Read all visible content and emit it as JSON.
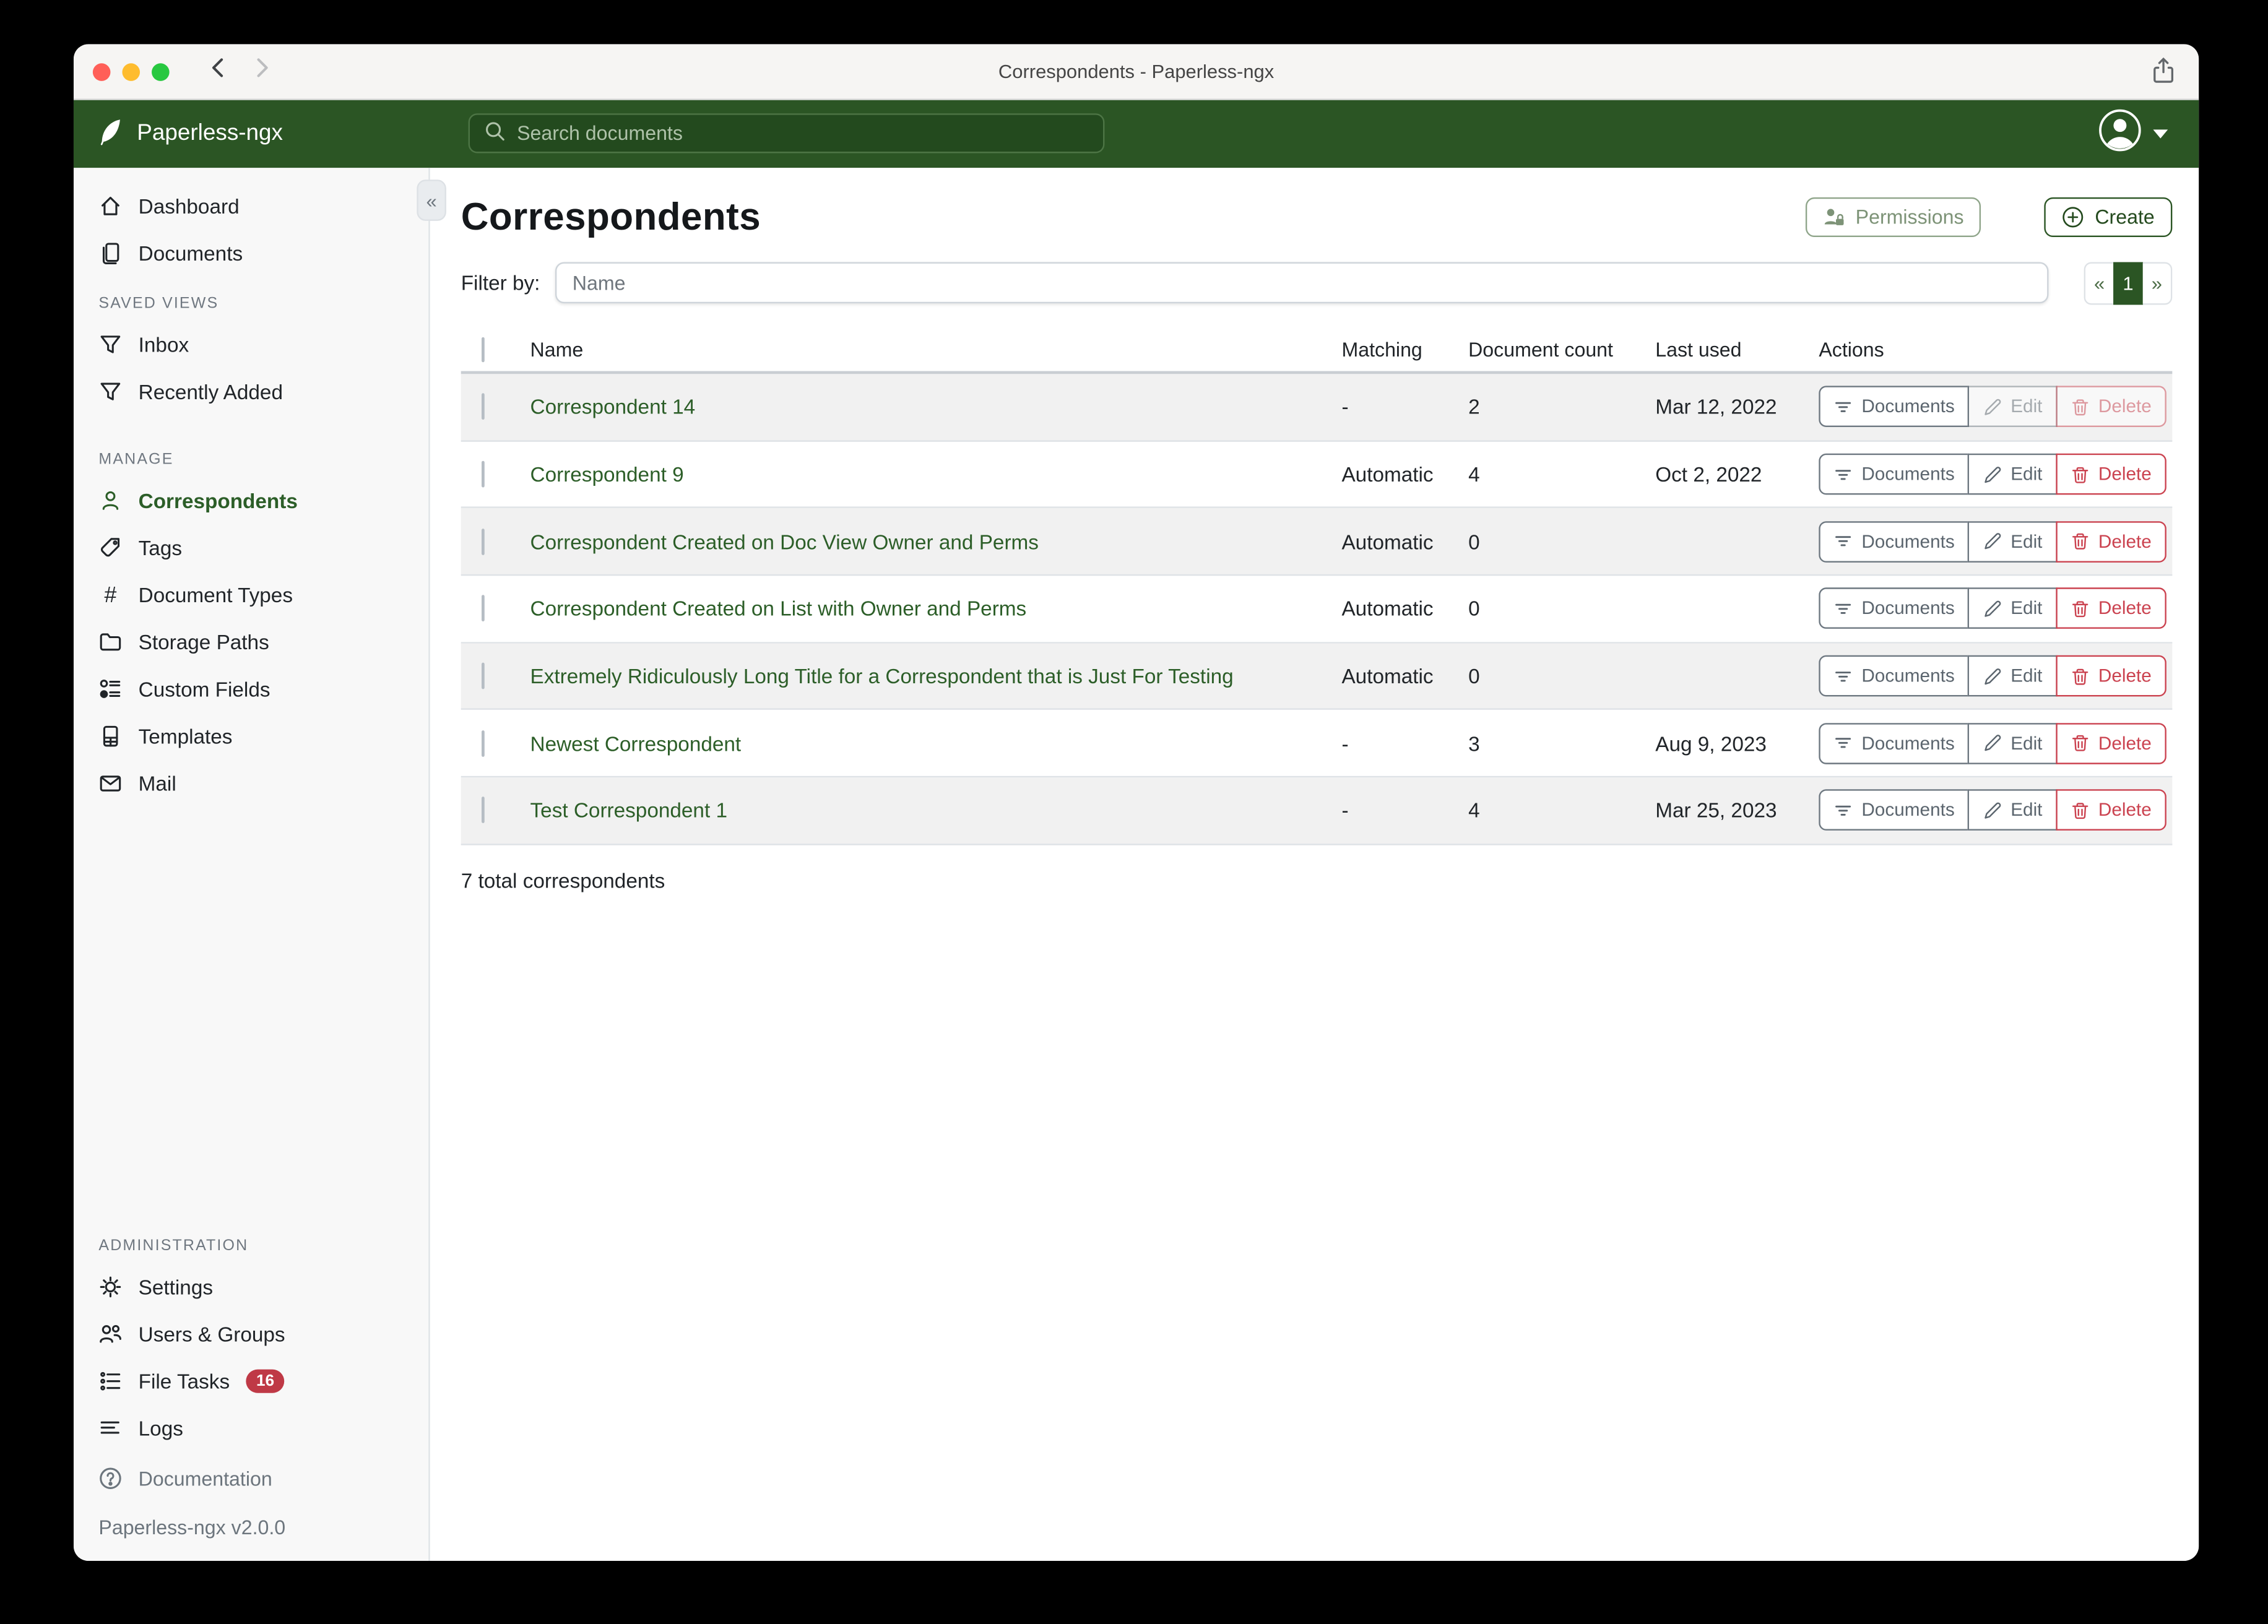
{
  "window": {
    "title": "Correspondents - Paperless-ngx"
  },
  "navbar": {
    "brand": "Paperless-ngx",
    "search_placeholder": "Search documents"
  },
  "sidebar": {
    "sections": [
      {
        "header": null,
        "items": [
          {
            "label": "Dashboard",
            "icon": "home"
          },
          {
            "label": "Documents",
            "icon": "documents"
          }
        ]
      },
      {
        "header": "SAVED VIEWS",
        "items": [
          {
            "label": "Inbox",
            "icon": "funnel"
          },
          {
            "label": "Recently Added",
            "icon": "funnel"
          }
        ]
      },
      {
        "header": "MANAGE",
        "items": [
          {
            "label": "Correspondents",
            "icon": "person",
            "active": true
          },
          {
            "label": "Tags",
            "icon": "tag"
          },
          {
            "label": "Document Types",
            "icon": "hash"
          },
          {
            "label": "Storage Paths",
            "icon": "folder"
          },
          {
            "label": "Custom Fields",
            "icon": "fields"
          },
          {
            "label": "Templates",
            "icon": "template"
          },
          {
            "label": "Mail",
            "icon": "mail"
          }
        ]
      },
      {
        "header": "ADMINISTRATION",
        "items": [
          {
            "label": "Settings",
            "icon": "gear"
          },
          {
            "label": "Users & Groups",
            "icon": "people"
          },
          {
            "label": "File Tasks",
            "icon": "tasks",
            "badge": "16"
          },
          {
            "label": "Logs",
            "icon": "logs"
          }
        ]
      }
    ],
    "documentation_label": "Documentation",
    "version": "Paperless-ngx v2.0.0"
  },
  "page": {
    "title": "Correspondents",
    "permissions_label": "Permissions",
    "create_label": "Create",
    "filter_label": "Filter by:",
    "filter_placeholder": "Name",
    "pagination": {
      "prev": "«",
      "current": "1",
      "next": "»"
    },
    "total": "7 total correspondents"
  },
  "table": {
    "headers": [
      "Name",
      "Matching",
      "Document count",
      "Last used",
      "Actions"
    ],
    "action_labels": {
      "documents": "Documents",
      "edit": "Edit",
      "delete": "Delete"
    },
    "rows": [
      {
        "name": "Correspondent 14",
        "matching": "-",
        "count": "2",
        "last_used": "Mar 12, 2022",
        "edit_disabled": true,
        "delete_disabled": true
      },
      {
        "name": "Correspondent 9",
        "matching": "Automatic",
        "count": "4",
        "last_used": "Oct 2, 2022",
        "edit_disabled": false,
        "delete_disabled": false
      },
      {
        "name": "Correspondent Created on Doc View Owner and Perms",
        "matching": "Automatic",
        "count": "0",
        "last_used": "",
        "edit_disabled": false,
        "delete_disabled": false
      },
      {
        "name": "Correspondent Created on List with Owner and Perms",
        "matching": "Automatic",
        "count": "0",
        "last_used": "",
        "edit_disabled": false,
        "delete_disabled": false
      },
      {
        "name": "Extremely Ridiculously Long Title for a Correspondent that is Just For Testing",
        "matching": "Automatic",
        "count": "0",
        "last_used": "",
        "edit_disabled": false,
        "delete_disabled": false
      },
      {
        "name": "Newest Correspondent",
        "matching": "-",
        "count": "3",
        "last_used": "Aug 9, 2023",
        "edit_disabled": false,
        "delete_disabled": false
      },
      {
        "name": "Test Correspondent 1",
        "matching": "-",
        "count": "4",
        "last_used": "Mar 25, 2023",
        "edit_disabled": false,
        "delete_disabled": false
      }
    ]
  },
  "colors": {
    "navbar_green": "#2b5524",
    "accent_green": "#2c5e28",
    "danger_red": "#cb4350",
    "sidebar_bg": "#f8f8f8",
    "stripe_gray": "#f1f1f1",
    "badge_red": "#bf3946"
  }
}
